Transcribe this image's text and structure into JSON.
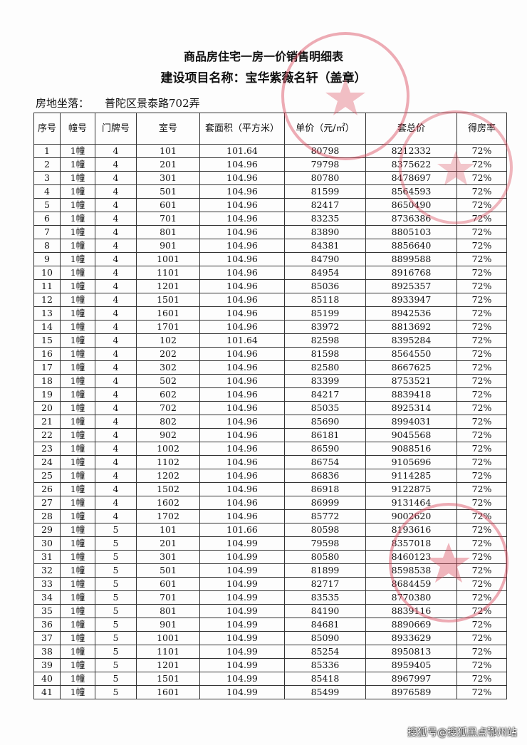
{
  "document": {
    "title": "商品房住宅一房一价销售明细表",
    "subtitle": "建设项目名称：宝华紫薇名轩（盖章）",
    "location_label": "房地坐落：",
    "location_value": "普陀区景泰路702弄",
    "stamp_color": "#d9485a",
    "watermark": "搜狐号@搜狐黑点鄂州站"
  },
  "table": {
    "headers": [
      "序号",
      "幢号",
      "门牌号",
      "室号",
      "套面积（平方米）",
      "单价（元/㎡）",
      "套总价",
      "得房率"
    ],
    "rows": [
      [
        "1",
        "1幢",
        "4",
        "101",
        "101.64",
        "80798",
        "8212332",
        "72%"
      ],
      [
        "2",
        "1幢",
        "4",
        "201",
        "104.96",
        "79798",
        "8375622",
        "72%"
      ],
      [
        "3",
        "1幢",
        "4",
        "301",
        "104.96",
        "80780",
        "8478697",
        "72%"
      ],
      [
        "4",
        "1幢",
        "4",
        "501",
        "104.96",
        "81599",
        "8564593",
        "72%"
      ],
      [
        "5",
        "1幢",
        "4",
        "601",
        "104.96",
        "82417",
        "8650490",
        "72%"
      ],
      [
        "6",
        "1幢",
        "4",
        "701",
        "104.96",
        "83235",
        "8736386",
        "72%"
      ],
      [
        "7",
        "1幢",
        "4",
        "801",
        "104.96",
        "83890",
        "8805103",
        "72%"
      ],
      [
        "8",
        "1幢",
        "4",
        "901",
        "104.96",
        "84381",
        "8856640",
        "72%"
      ],
      [
        "9",
        "1幢",
        "4",
        "1001",
        "104.96",
        "84790",
        "8899588",
        "72%"
      ],
      [
        "10",
        "1幢",
        "4",
        "1101",
        "104.96",
        "84954",
        "8916768",
        "72%"
      ],
      [
        "11",
        "1幢",
        "4",
        "1201",
        "104.96",
        "85036",
        "8925357",
        "72%"
      ],
      [
        "12",
        "1幢",
        "4",
        "1501",
        "104.96",
        "85118",
        "8933947",
        "72%"
      ],
      [
        "13",
        "1幢",
        "4",
        "1601",
        "104.96",
        "85199",
        "8942536",
        "72%"
      ],
      [
        "14",
        "1幢",
        "4",
        "1701",
        "104.96",
        "83972",
        "8813692",
        "72%"
      ],
      [
        "15",
        "1幢",
        "4",
        "102",
        "101.64",
        "82598",
        "8395284",
        "72%"
      ],
      [
        "16",
        "1幢",
        "4",
        "202",
        "104.96",
        "81598",
        "8564550",
        "72%"
      ],
      [
        "17",
        "1幢",
        "4",
        "302",
        "104.96",
        "82580",
        "8667625",
        "72%"
      ],
      [
        "18",
        "1幢",
        "4",
        "502",
        "104.96",
        "83399",
        "8753521",
        "72%"
      ],
      [
        "19",
        "1幢",
        "4",
        "602",
        "104.96",
        "84217",
        "8839418",
        "72%"
      ],
      [
        "20",
        "1幢",
        "4",
        "702",
        "104.96",
        "85035",
        "8925314",
        "72%"
      ],
      [
        "21",
        "1幢",
        "4",
        "802",
        "104.96",
        "85690",
        "8994031",
        "72%"
      ],
      [
        "22",
        "1幢",
        "4",
        "902",
        "104.96",
        "86181",
        "9045568",
        "72%"
      ],
      [
        "23",
        "1幢",
        "4",
        "1002",
        "104.96",
        "86590",
        "9088516",
        "72%"
      ],
      [
        "24",
        "1幢",
        "4",
        "1102",
        "104.96",
        "86754",
        "9105696",
        "72%"
      ],
      [
        "25",
        "1幢",
        "4",
        "1202",
        "104.96",
        "86836",
        "9114285",
        "72%"
      ],
      [
        "26",
        "1幢",
        "4",
        "1502",
        "104.96",
        "86918",
        "9122875",
        "72%"
      ],
      [
        "27",
        "1幢",
        "4",
        "1602",
        "104.96",
        "86999",
        "9131464",
        "72%"
      ],
      [
        "28",
        "1幢",
        "4",
        "1702",
        "104.96",
        "85772",
        "9002620",
        "72%"
      ],
      [
        "29",
        "1幢",
        "5",
        "101",
        "101.66",
        "80598",
        "8193616",
        "72%"
      ],
      [
        "30",
        "1幢",
        "5",
        "201",
        "104.99",
        "79598",
        "8357018",
        "72%"
      ],
      [
        "31",
        "1幢",
        "5",
        "301",
        "104.99",
        "80580",
        "8460123",
        "72%"
      ],
      [
        "32",
        "1幢",
        "5",
        "501",
        "104.99",
        "81899",
        "8598538",
        "72%"
      ],
      [
        "33",
        "1幢",
        "5",
        "601",
        "104.99",
        "82717",
        "8684459",
        "72%"
      ],
      [
        "34",
        "1幢",
        "5",
        "701",
        "104.99",
        "83535",
        "8770380",
        "72%"
      ],
      [
        "35",
        "1幢",
        "5",
        "801",
        "104.99",
        "84190",
        "8839116",
        "72%"
      ],
      [
        "36",
        "1幢",
        "5",
        "901",
        "104.99",
        "84681",
        "8890669",
        "72%"
      ],
      [
        "37",
        "1幢",
        "5",
        "1001",
        "104.99",
        "85090",
        "8933629",
        "72%"
      ],
      [
        "38",
        "1幢",
        "5",
        "1101",
        "104.99",
        "85254",
        "8950813",
        "72%"
      ],
      [
        "39",
        "1幢",
        "5",
        "1201",
        "104.99",
        "85336",
        "8959405",
        "72%"
      ],
      [
        "40",
        "1幢",
        "5",
        "1501",
        "104.99",
        "85418",
        "8967997",
        "72%"
      ],
      [
        "41",
        "1幢",
        "5",
        "1601",
        "104.99",
        "85499",
        "8976589",
        "72%"
      ]
    ]
  }
}
